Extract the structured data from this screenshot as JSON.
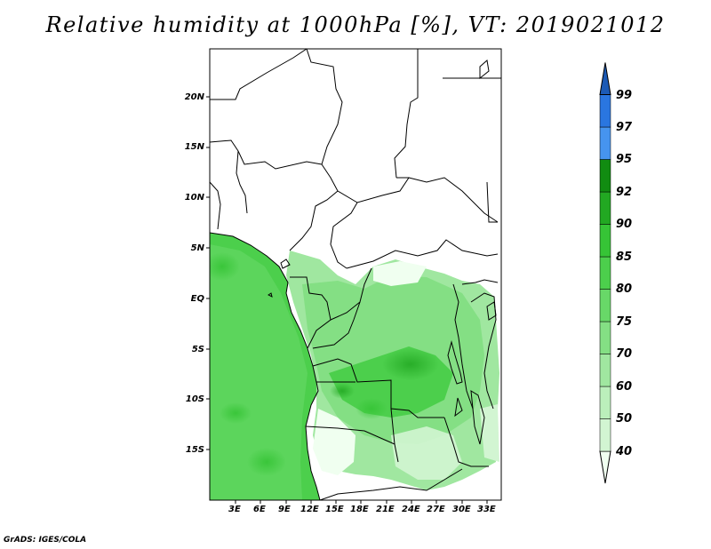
{
  "title": "Relative humidity at 1000hPa [%], VT: 2019021012",
  "credit": "GrADS: IGES/COLA",
  "map": {
    "lon_range": [
      0,
      34
    ],
    "lat_range": [
      -20,
      25
    ],
    "lat_labels": [
      "20N",
      "15N",
      "10N",
      "5N",
      "EQ",
      "5S",
      "10S",
      "15S"
    ],
    "lon_labels": [
      "3E",
      "6E",
      "9E",
      "12E",
      "15E",
      "18E",
      "21E",
      "24E",
      "27E",
      "30E",
      "33E"
    ]
  },
  "colorbar": {
    "levels": [
      "40",
      "50",
      "60",
      "70",
      "75",
      "80",
      "85",
      "90",
      "92",
      "95",
      "97",
      "99"
    ],
    "colors": [
      "#f0fff0",
      "#d2f5d2",
      "#bbefbb",
      "#a0e7a0",
      "#84df84",
      "#68d868",
      "#4ccf4c",
      "#36c436",
      "#22a822",
      "#118c11",
      "#4694ef",
      "#2a76e0",
      "#1c5ab5"
    ]
  },
  "palette": {
    "land": "#ffffff",
    "border": "#000000"
  }
}
